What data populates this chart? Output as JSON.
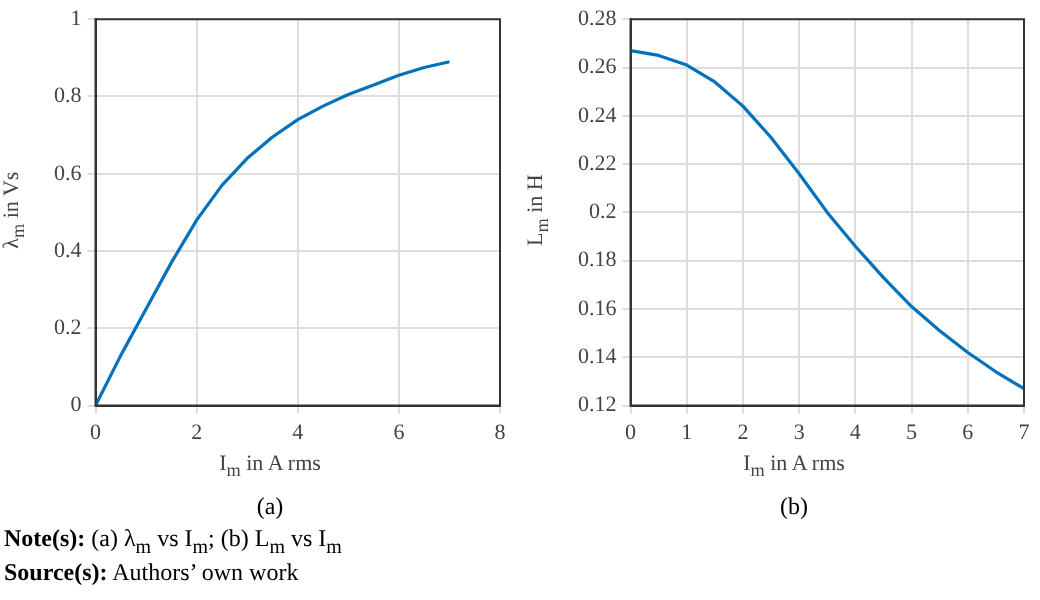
{
  "chart_data": [
    {
      "type": "line",
      "xlabel": "I$_{m}$ in A rms",
      "ylabel": "λ$_{m}$ in Vs",
      "x": [
        0,
        0.5,
        1,
        1.5,
        2,
        2.5,
        3,
        3.5,
        4,
        4.5,
        5,
        5.5,
        6,
        6.5,
        7
      ],
      "series": [
        {
          "color": "#0072bd",
          "values": [
            0,
            0.13,
            0.25,
            0.37,
            0.48,
            0.57,
            0.64,
            0.695,
            0.74,
            0.775,
            0.805,
            0.83,
            0.855,
            0.875,
            0.89
          ]
        }
      ],
      "xlim": [
        0,
        8
      ],
      "xticks": [
        0,
        2,
        4,
        6,
        8
      ],
      "ylim": [
        0,
        1
      ],
      "yticks": [
        0,
        0.2,
        0.4,
        0.6,
        0.8,
        1
      ],
      "grid": true,
      "legend": false,
      "marker": "none",
      "line_style": "solid",
      "annotations": [
        "(a)",
        "**Note(s):** (a) λ$_{m}$ vs I$_{m}$; (b) L$_{m}$ vs I$_{m}$",
        "**Source(s):** Authors’ own work"
      ]
    },
    {
      "type": "line",
      "xlabel": "I$_{m}$ in A rms",
      "ylabel": "L$_{m}$ in H",
      "x": [
        0,
        0.5,
        1,
        1.5,
        2,
        2.5,
        3,
        3.5,
        4,
        4.5,
        5,
        5.5,
        6,
        6.5,
        7
      ],
      "series": [
        {
          "color": "#0072bd",
          "values": [
            0.267,
            0.265,
            0.261,
            0.254,
            0.244,
            0.231,
            0.216,
            0.2,
            0.186,
            0.173,
            0.161,
            0.151,
            0.142,
            0.134,
            0.127
          ]
        }
      ],
      "xlim": [
        0,
        7
      ],
      "xticks": [
        0,
        1,
        2,
        3,
        4,
        5,
        6,
        7
      ],
      "ylim": [
        0.12,
        0.28
      ],
      "yticks": [
        0.12,
        0.14,
        0.16,
        0.18,
        0.2,
        0.22,
        0.24,
        0.26,
        0.28
      ],
      "grid": true,
      "legend": false,
      "marker": "none",
      "line_style": "solid",
      "annotations": [
        "(b)"
      ]
    }
  ]
}
